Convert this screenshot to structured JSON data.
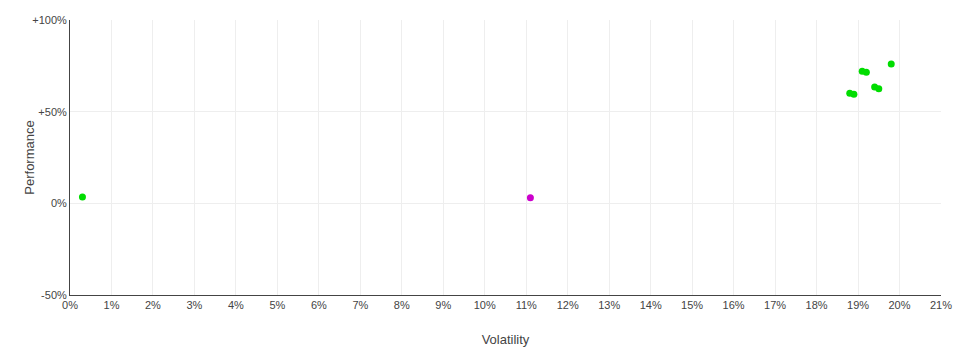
{
  "chart_data": {
    "type": "scatter",
    "xlabel": "Volatility",
    "ylabel": "Performance",
    "xlim": [
      0,
      0.21
    ],
    "ylim": [
      -0.5,
      1.0
    ],
    "xticks": [
      {
        "value": 0.0,
        "label": "0%"
      },
      {
        "value": 0.01,
        "label": "1%"
      },
      {
        "value": 0.02,
        "label": "2%"
      },
      {
        "value": 0.03,
        "label": "3%"
      },
      {
        "value": 0.04,
        "label": "4%"
      },
      {
        "value": 0.05,
        "label": "5%"
      },
      {
        "value": 0.06,
        "label": "6%"
      },
      {
        "value": 0.07,
        "label": "7%"
      },
      {
        "value": 0.08,
        "label": "8%"
      },
      {
        "value": 0.09,
        "label": "9%"
      },
      {
        "value": 0.1,
        "label": "10%"
      },
      {
        "value": 0.11,
        "label": "11%"
      },
      {
        "value": 0.12,
        "label": "12%"
      },
      {
        "value": 0.13,
        "label": "13%"
      },
      {
        "value": 0.14,
        "label": "14%"
      },
      {
        "value": 0.15,
        "label": "15%"
      },
      {
        "value": 0.16,
        "label": "16%"
      },
      {
        "value": 0.17,
        "label": "17%"
      },
      {
        "value": 0.18,
        "label": "18%"
      },
      {
        "value": 0.19,
        "label": "19%"
      },
      {
        "value": 0.2,
        "label": "20%"
      },
      {
        "value": 0.21,
        "label": "21%"
      }
    ],
    "yticks": [
      {
        "value": -0.5,
        "label": "-50%"
      },
      {
        "value": 0.0,
        "label": "0%"
      },
      {
        "value": 0.5,
        "label": "+50%"
      },
      {
        "value": 1.0,
        "label": "+100%"
      }
    ],
    "grid": true,
    "series": [
      {
        "color": "#00dd00",
        "x": [
          0.003,
          0.188,
          0.189,
          0.191,
          0.192,
          0.194,
          0.195,
          0.198
        ],
        "values": [
          0.035,
          0.6,
          0.595,
          0.72,
          0.715,
          0.635,
          0.625,
          0.76
        ]
      },
      {
        "color": "#cc00cc",
        "x": [
          0.111
        ],
        "values": [
          0.03
        ]
      }
    ]
  }
}
